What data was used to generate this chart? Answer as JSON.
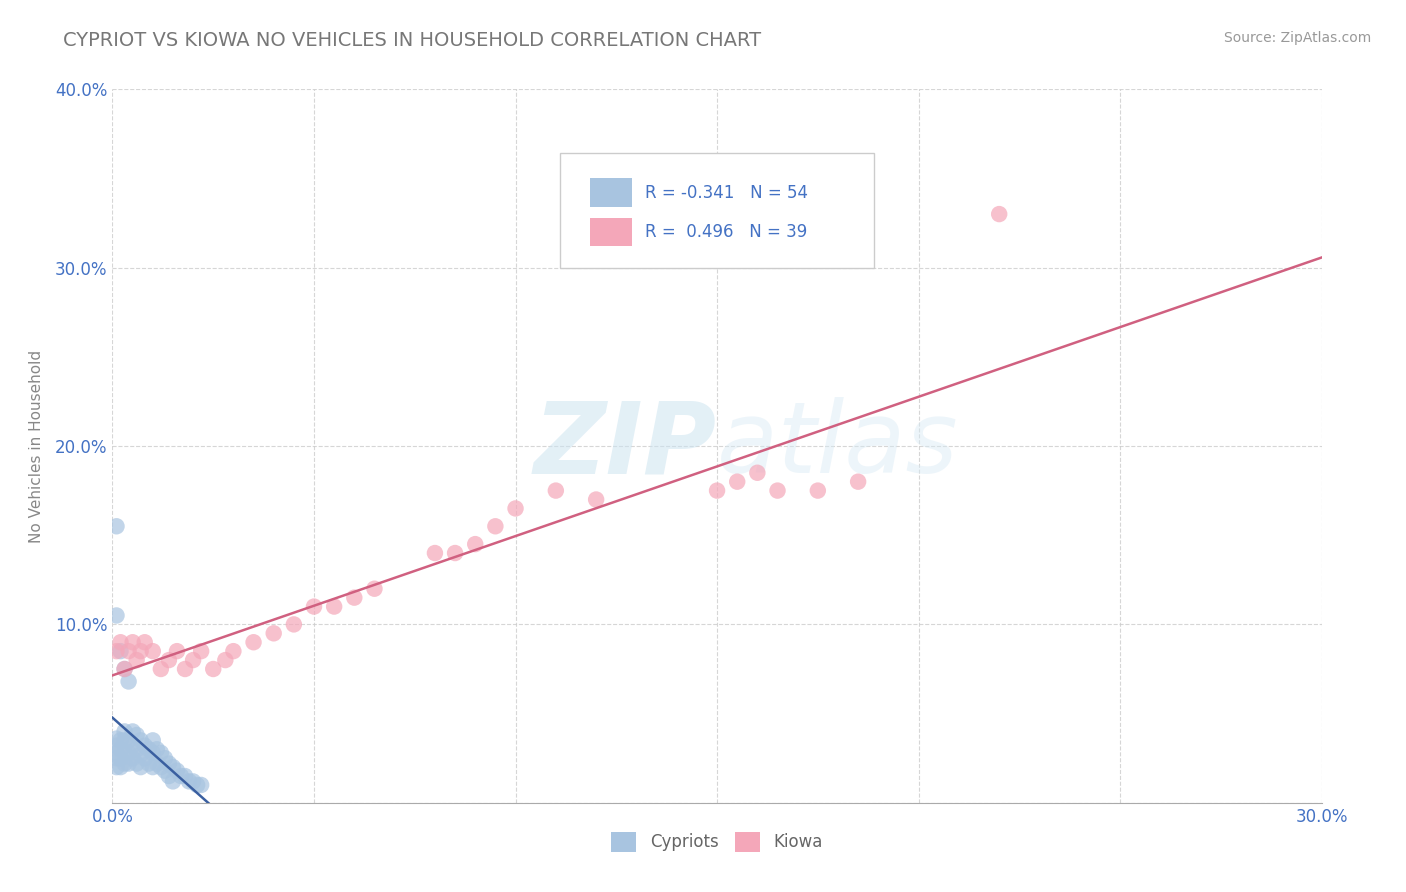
{
  "title": "CYPRIOT VS KIOWA NO VEHICLES IN HOUSEHOLD CORRELATION CHART",
  "source": "Source: ZipAtlas.com",
  "ylabel": "No Vehicles in Household",
  "xlim": [
    0.0,
    0.3
  ],
  "ylim": [
    0.0,
    0.4
  ],
  "xticks": [
    0.0,
    0.05,
    0.1,
    0.15,
    0.2,
    0.25,
    0.3
  ],
  "xticklabels": [
    "0.0%",
    "",
    "",
    "",
    "",
    "",
    "30.0%"
  ],
  "yticks": [
    0.0,
    0.1,
    0.2,
    0.3,
    0.4
  ],
  "yticklabels": [
    "",
    "10.0%",
    "20.0%",
    "30.0%",
    "40.0%"
  ],
  "cypriot_color": "#a8c4e0",
  "kiowa_color": "#f4a7b9",
  "cypriot_line_color": "#3a5fa0",
  "kiowa_line_color": "#d06080",
  "R_cypriot": -0.341,
  "N_cypriot": 54,
  "R_kiowa": 0.496,
  "N_kiowa": 39,
  "watermark": "ZIPatlas",
  "background_color": "#ffffff",
  "grid_color": "#cccccc",
  "cypriot_x": [
    0.001,
    0.001,
    0.001,
    0.001,
    0.001,
    0.002,
    0.002,
    0.002,
    0.002,
    0.003,
    0.003,
    0.003,
    0.003,
    0.004,
    0.004,
    0.004,
    0.005,
    0.005,
    0.005,
    0.006,
    0.006,
    0.006,
    0.007,
    0.007,
    0.007,
    0.008,
    0.008,
    0.009,
    0.009,
    0.01,
    0.01,
    0.01,
    0.011,
    0.011,
    0.012,
    0.012,
    0.013,
    0.013,
    0.014,
    0.014,
    0.015,
    0.015,
    0.016,
    0.017,
    0.018,
    0.019,
    0.02,
    0.021,
    0.022,
    0.001,
    0.001,
    0.002,
    0.003,
    0.004
  ],
  "cypriot_y": [
    0.036,
    0.032,
    0.028,
    0.025,
    0.02,
    0.035,
    0.03,
    0.025,
    0.02,
    0.04,
    0.035,
    0.028,
    0.022,
    0.035,
    0.028,
    0.022,
    0.04,
    0.032,
    0.025,
    0.038,
    0.03,
    0.022,
    0.035,
    0.027,
    0.02,
    0.032,
    0.025,
    0.03,
    0.022,
    0.035,
    0.028,
    0.02,
    0.03,
    0.022,
    0.028,
    0.02,
    0.025,
    0.018,
    0.022,
    0.015,
    0.02,
    0.012,
    0.018,
    0.015,
    0.015,
    0.012,
    0.012,
    0.01,
    0.01,
    0.155,
    0.105,
    0.085,
    0.075,
    0.068
  ],
  "kiowa_x": [
    0.001,
    0.002,
    0.003,
    0.004,
    0.005,
    0.006,
    0.007,
    0.008,
    0.01,
    0.012,
    0.014,
    0.016,
    0.018,
    0.02,
    0.022,
    0.025,
    0.028,
    0.03,
    0.035,
    0.04,
    0.045,
    0.05,
    0.055,
    0.06,
    0.065,
    0.08,
    0.085,
    0.09,
    0.095,
    0.1,
    0.11,
    0.12,
    0.15,
    0.155,
    0.16,
    0.165,
    0.175,
    0.185,
    0.22
  ],
  "kiowa_y": [
    0.085,
    0.09,
    0.075,
    0.085,
    0.09,
    0.08,
    0.085,
    0.09,
    0.085,
    0.075,
    0.08,
    0.085,
    0.075,
    0.08,
    0.085,
    0.075,
    0.08,
    0.085,
    0.09,
    0.095,
    0.1,
    0.11,
    0.11,
    0.115,
    0.12,
    0.14,
    0.14,
    0.145,
    0.155,
    0.165,
    0.175,
    0.17,
    0.175,
    0.18,
    0.185,
    0.175,
    0.175,
    0.18,
    0.33
  ]
}
